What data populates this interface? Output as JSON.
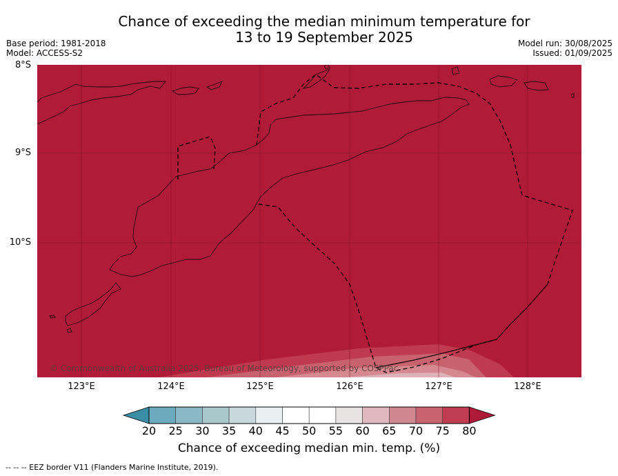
{
  "title_line1": "Chance of exceeding the median minimum temperature for",
  "title_line2": "13 to 19 September 2025",
  "meta_left": {
    "base_period": "Base period: 1981-2018",
    "model": "Model: ACCESS-S2"
  },
  "meta_right": {
    "model_run": "Model run: 30/08/2025",
    "issued": "Issued: 01/09/2025"
  },
  "map": {
    "lat_labels": [
      "8°S",
      "9°S",
      "10°S"
    ],
    "lon_labels": [
      "123°E",
      "124°E",
      "125°E",
      "126°E",
      "127°E",
      "128°E"
    ],
    "copyright": "© Commonwealth of Australia 2025, Bureau of Meteorology, supported by COSPPac",
    "dominant_color": "#b01c38"
  },
  "colorbar": {
    "ticks": [
      "20",
      "25",
      "30",
      "35",
      "40",
      "45",
      "50",
      "55",
      "60",
      "65",
      "70",
      "75",
      "80"
    ],
    "colors": [
      "#4a9ab0",
      "#6aaabc",
      "#8ab8c4",
      "#a8c8cc",
      "#c8d8dc",
      "#e8f0f2",
      "#ffffff",
      "#ffffff",
      "#e8e4e4",
      "#e0b8c0",
      "#d08890",
      "#c86470",
      "#c03c50"
    ],
    "low_color": "#3a8ea6",
    "high_color": "#ae1a37",
    "title": "Chance of exceeding median min. temp. (%)"
  },
  "footer": "--  --  -- EEZ border V11 (Flanders Marine Institute, 2019)."
}
